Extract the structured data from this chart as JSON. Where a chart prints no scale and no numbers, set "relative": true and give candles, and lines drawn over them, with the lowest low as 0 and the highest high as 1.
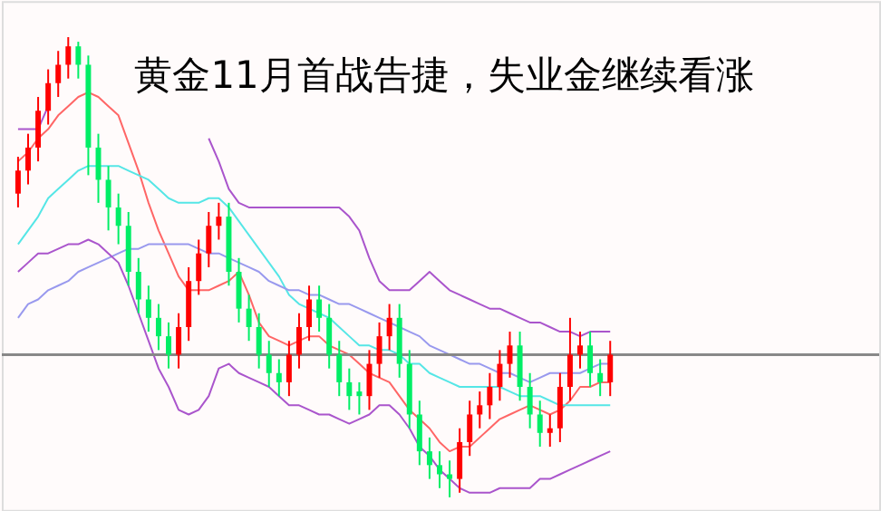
{
  "chart_data": {
    "type": "candlestick",
    "title": "黄金11月首战告捷，失业金继续看涨",
    "relative": true,
    "categories": [
      null,
      null,
      null,
      null,
      null,
      null,
      null,
      null,
      null,
      null,
      null,
      null,
      null,
      null,
      null,
      null,
      null,
      null,
      null,
      null,
      null,
      null,
      null,
      null,
      null,
      null,
      null,
      null,
      null,
      null,
      null,
      null,
      null,
      null,
      null,
      null,
      null,
      null,
      null,
      null,
      null,
      null,
      null,
      null,
      null,
      null,
      null,
      null,
      null,
      null,
      null,
      null,
      null,
      null,
      null,
      null,
      null,
      null,
      null,
      null
    ],
    "ohlc": [
      [
        0.66,
        0.74,
        0.63,
        0.71
      ],
      [
        0.71,
        0.79,
        0.68,
        0.76
      ],
      [
        0.76,
        0.87,
        0.73,
        0.84
      ],
      [
        0.84,
        0.93,
        0.81,
        0.9
      ],
      [
        0.9,
        0.97,
        0.87,
        0.94
      ],
      [
        0.94,
        1.0,
        0.91,
        0.98
      ],
      [
        0.98,
        0.99,
        0.91,
        0.94
      ],
      [
        0.94,
        0.96,
        0.7,
        0.76
      ],
      [
        0.76,
        0.79,
        0.64,
        0.69
      ],
      [
        0.69,
        0.72,
        0.58,
        0.63
      ],
      [
        0.63,
        0.66,
        0.55,
        0.59
      ],
      [
        0.59,
        0.62,
        0.46,
        0.49
      ],
      [
        0.49,
        0.52,
        0.4,
        0.43
      ],
      [
        0.43,
        0.46,
        0.36,
        0.39
      ],
      [
        0.39,
        0.42,
        0.32,
        0.35
      ],
      [
        0.35,
        0.38,
        0.28,
        0.31
      ],
      [
        0.31,
        0.4,
        0.28,
        0.37
      ],
      [
        0.37,
        0.5,
        0.34,
        0.47
      ],
      [
        0.47,
        0.56,
        0.44,
        0.53
      ],
      [
        0.53,
        0.62,
        0.5,
        0.59
      ],
      [
        0.59,
        0.64,
        0.56,
        0.61
      ],
      [
        0.61,
        0.64,
        0.46,
        0.49
      ],
      [
        0.49,
        0.52,
        0.38,
        0.41
      ],
      [
        0.41,
        0.44,
        0.34,
        0.37
      ],
      [
        0.37,
        0.4,
        0.28,
        0.31
      ],
      [
        0.31,
        0.34,
        0.24,
        0.27
      ],
      [
        0.27,
        0.3,
        0.22,
        0.25
      ],
      [
        0.25,
        0.34,
        0.22,
        0.31
      ],
      [
        0.31,
        0.4,
        0.28,
        0.37
      ],
      [
        0.37,
        0.46,
        0.34,
        0.43
      ],
      [
        0.43,
        0.46,
        0.36,
        0.39
      ],
      [
        0.39,
        0.42,
        0.28,
        0.31
      ],
      [
        0.31,
        0.34,
        0.22,
        0.25
      ],
      [
        0.25,
        0.28,
        0.19,
        0.22
      ],
      [
        0.23,
        0.25,
        0.18,
        0.22
      ],
      [
        0.22,
        0.32,
        0.19,
        0.29
      ],
      [
        0.29,
        0.38,
        0.26,
        0.35
      ],
      [
        0.35,
        0.42,
        0.32,
        0.39
      ],
      [
        0.39,
        0.42,
        0.26,
        0.29
      ],
      [
        0.29,
        0.32,
        0.15,
        0.18
      ],
      [
        0.18,
        0.21,
        0.07,
        0.1
      ],
      [
        0.1,
        0.13,
        0.04,
        0.07
      ],
      [
        0.07,
        0.1,
        0.02,
        0.05
      ],
      [
        0.05,
        0.08,
        0.0,
        0.04
      ],
      [
        0.04,
        0.15,
        0.01,
        0.12
      ],
      [
        0.12,
        0.21,
        0.09,
        0.18
      ],
      [
        0.18,
        0.23,
        0.15,
        0.2
      ],
      [
        0.2,
        0.27,
        0.17,
        0.24
      ],
      [
        0.24,
        0.32,
        0.21,
        0.29
      ],
      [
        0.29,
        0.36,
        0.26,
        0.33
      ],
      [
        0.33,
        0.36,
        0.21,
        0.24
      ],
      [
        0.24,
        0.27,
        0.15,
        0.18
      ],
      [
        0.18,
        0.21,
        0.11,
        0.14
      ],
      [
        0.14,
        0.18,
        0.11,
        0.15
      ],
      [
        0.15,
        0.27,
        0.12,
        0.24
      ],
      [
        0.24,
        0.39,
        0.21,
        0.31
      ],
      [
        0.31,
        0.36,
        0.28,
        0.33
      ],
      [
        0.33,
        0.36,
        0.24,
        0.27
      ],
      [
        0.27,
        0.3,
        0.22,
        0.25
      ],
      [
        0.25,
        0.34,
        0.22,
        0.31
      ]
    ],
    "colors": [
      "#ff0000",
      "#ff0000",
      "#ff0000",
      "#ff0000",
      "#ff0000",
      "#ff0000",
      "#00ee66",
      "#00ee66",
      "#00ee66",
      "#00ee66",
      "#00ee66",
      "#00ee66",
      "#00ee66",
      "#00ee66",
      "#00ee66",
      "#00ee66",
      "#ff0000",
      "#ff0000",
      "#ff0000",
      "#ff0000",
      "#ff0000",
      "#00ee66",
      "#00ee66",
      "#00ee66",
      "#00ee66",
      "#00ee66",
      "#00ee66",
      "#ff0000",
      "#ff0000",
      "#ff0000",
      "#00ee66",
      "#00ee66",
      "#00ee66",
      "#00ee66",
      "#00ee66",
      "#ff0000",
      "#ff0000",
      "#ff0000",
      "#00ee66",
      "#00ee66",
      "#00ee66",
      "#00ee66",
      "#00ee66",
      "#00ee66",
      "#ff0000",
      "#ff0000",
      "#ff0000",
      "#ff0000",
      "#ff0000",
      "#ff0000",
      "#00ee66",
      "#00ee66",
      "#00ee66",
      "#ff0000",
      "#ff0000",
      "#ff0000",
      "#ff0000",
      "#00ee66",
      "#00ee66",
      "#ff0000"
    ],
    "series": [
      {
        "type": "line",
        "color": "#ff6666",
        "values": [
          0.73,
          0.75,
          0.78,
          0.8,
          0.83,
          0.85,
          0.87,
          0.88,
          0.87,
          0.85,
          0.83,
          0.77,
          0.71,
          0.64,
          0.58,
          0.53,
          0.48,
          0.45,
          0.45,
          0.45,
          0.46,
          0.47,
          0.49,
          0.44,
          0.38,
          0.35,
          0.34,
          0.33,
          0.34,
          0.35,
          0.35,
          0.33,
          0.32,
          0.31,
          0.29,
          0.27,
          0.26,
          0.25,
          0.22,
          0.19,
          0.17,
          0.15,
          0.12,
          0.1,
          0.11,
          0.11,
          0.13,
          0.15,
          0.17,
          0.18,
          0.19,
          0.2,
          0.19,
          0.18,
          0.19,
          0.21,
          0.24,
          0.24,
          0.25,
          0.25
        ]
      },
      {
        "type": "line",
        "color": "#55e6e6",
        "values": [
          0.55,
          0.58,
          0.61,
          0.65,
          0.67,
          0.69,
          0.71,
          0.72,
          0.72,
          0.72,
          0.72,
          0.71,
          0.7,
          0.69,
          0.67,
          0.65,
          0.64,
          0.64,
          0.64,
          0.65,
          0.65,
          0.63,
          0.6,
          0.57,
          0.54,
          0.51,
          0.48,
          0.44,
          0.42,
          0.41,
          0.4,
          0.39,
          0.37,
          0.35,
          0.33,
          0.33,
          0.32,
          0.32,
          0.31,
          0.29,
          0.29,
          0.27,
          0.26,
          0.25,
          0.24,
          0.24,
          0.24,
          0.24,
          0.24,
          0.23,
          0.22,
          0.22,
          0.22,
          0.21,
          0.2,
          0.2,
          0.2,
          0.2,
          0.2,
          0.2
        ]
      },
      {
        "type": "line",
        "color": "#9999ee",
        "values": [
          0.39,
          0.42,
          0.43,
          0.45,
          0.46,
          0.47,
          0.49,
          0.5,
          0.51,
          0.52,
          0.53,
          0.54,
          0.54,
          0.55,
          0.55,
          0.55,
          0.55,
          0.55,
          0.54,
          0.53,
          0.53,
          0.52,
          0.51,
          0.5,
          0.49,
          0.47,
          0.46,
          0.45,
          0.45,
          0.44,
          0.44,
          0.43,
          0.42,
          0.42,
          0.41,
          0.4,
          0.39,
          0.38,
          0.37,
          0.36,
          0.35,
          0.33,
          0.32,
          0.31,
          0.3,
          0.29,
          0.29,
          0.28,
          0.27,
          0.27,
          0.26,
          0.25,
          0.26,
          0.27,
          0.27,
          0.27,
          0.27,
          0.28,
          0.29,
          0.29
        ]
      },
      {
        "type": "line",
        "color": "#aa55cc",
        "values": [
          0.49,
          0.51,
          0.53,
          0.53,
          0.54,
          0.55,
          0.55,
          0.56,
          0.55,
          0.53,
          0.51,
          0.46,
          0.4,
          0.34,
          0.28,
          0.24,
          0.19,
          0.18,
          0.19,
          0.22,
          0.28,
          0.29,
          0.27,
          0.26,
          0.25,
          0.24,
          0.22,
          0.2,
          0.2,
          0.19,
          0.18,
          0.18,
          0.17,
          0.16,
          0.17,
          0.18,
          0.2,
          0.2,
          0.18,
          0.15,
          0.11,
          0.09,
          0.06,
          0.04,
          0.02,
          0.01,
          0.01,
          0.01,
          0.02,
          0.02,
          0.02,
          0.02,
          0.04,
          0.04,
          0.05,
          0.06,
          0.07,
          0.08,
          0.09,
          0.1
        ]
      },
      {
        "type": "line",
        "color": "#aa55cc",
        "values": [
          0.8,
          0.8,
          0.8,
          0.85,
          null,
          null,
          null,
          null,
          null,
          null,
          null,
          null,
          null,
          null,
          null,
          null,
          null,
          null,
          null,
          0.78,
          0.73,
          0.67,
          0.64,
          0.63,
          0.63,
          0.63,
          0.63,
          0.63,
          0.63,
          0.63,
          0.63,
          0.63,
          0.63,
          0.61,
          0.58,
          0.52,
          0.47,
          0.45,
          0.45,
          0.45,
          0.47,
          0.49,
          0.47,
          0.45,
          0.44,
          0.43,
          0.42,
          0.41,
          0.41,
          0.4,
          0.39,
          0.38,
          0.38,
          0.37,
          0.36,
          0.36,
          0.35,
          0.36,
          0.36,
          0.36
        ]
      }
    ],
    "ref_lines": [
      {
        "axis": "y",
        "value": 0.31,
        "color": "#888888"
      }
    ]
  }
}
